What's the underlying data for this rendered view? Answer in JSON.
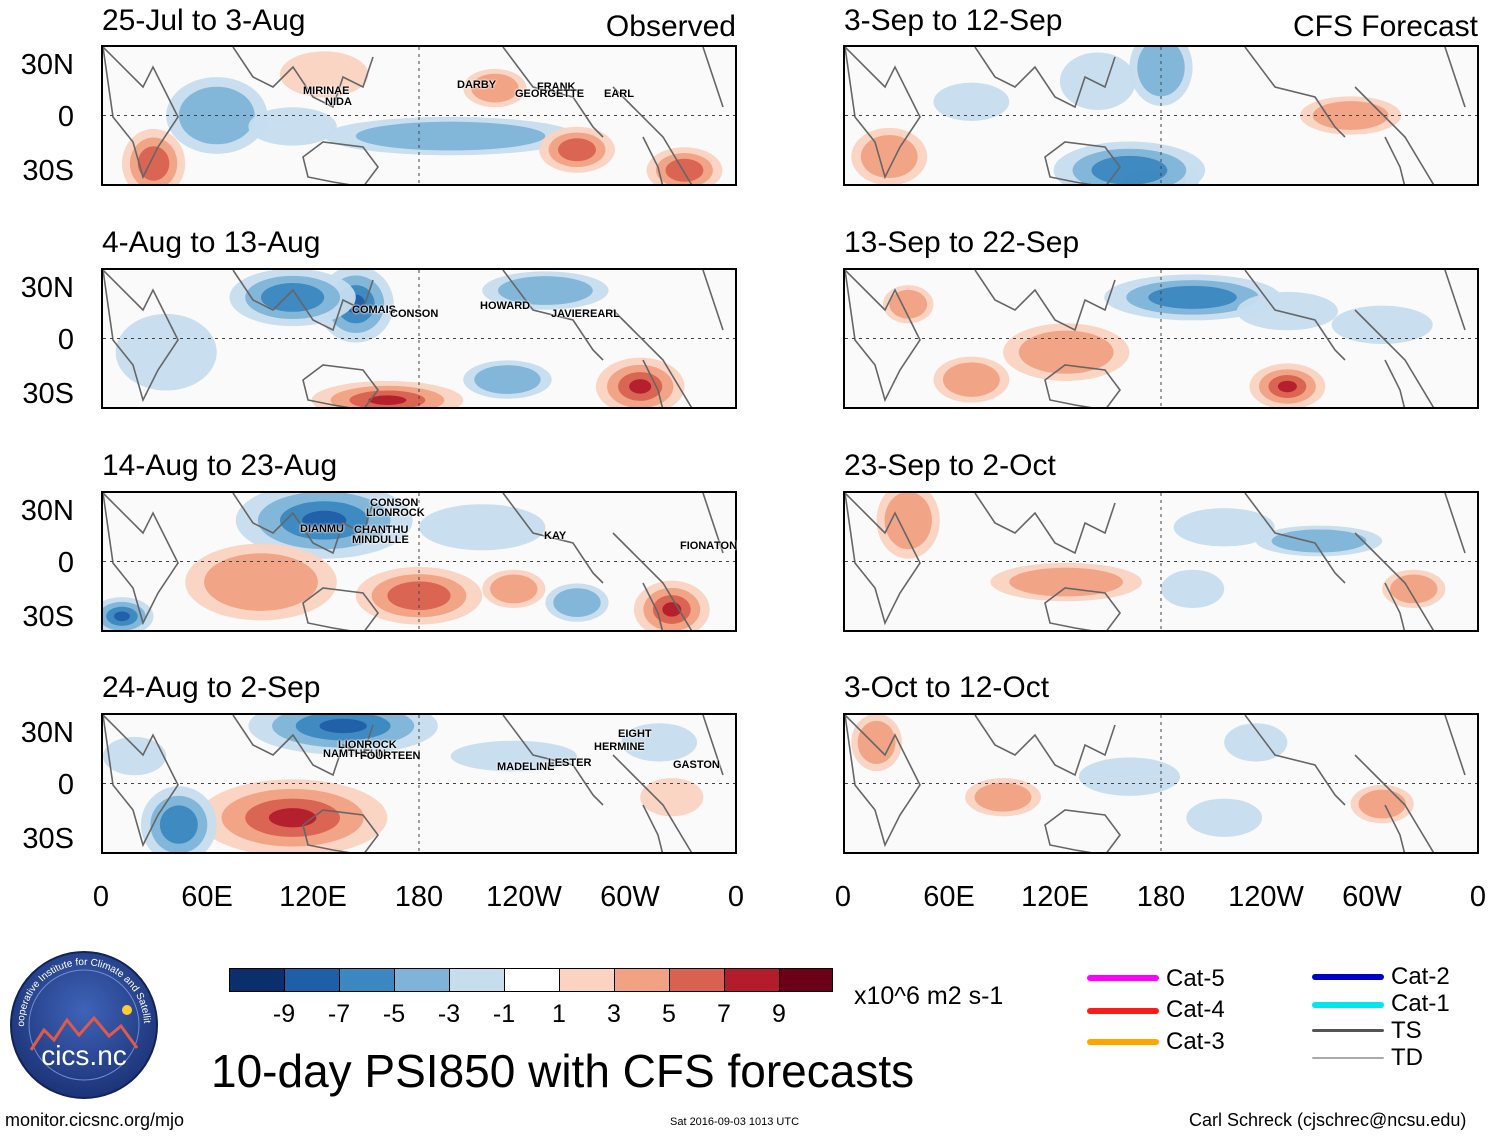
{
  "observed_label": "Observed",
  "forecast_label": "CFS Forecast",
  "lat_labels": [
    "30N",
    "0",
    "30S"
  ],
  "lon_labels": [
    "0",
    "60E",
    "120E",
    "180",
    "120W",
    "60W",
    "0"
  ],
  "observed_panels": [
    {
      "title": "25-Jul to 3-Aug",
      "storms": [
        "MIRINAE",
        "NIDA",
        "DARBY",
        "FRANK",
        "GEORGETTE",
        "EARL"
      ]
    },
    {
      "title": "4-Aug to 13-Aug",
      "storms": [
        "COMAIS",
        "CONSON",
        "HOWARD",
        "JAVIER",
        "EARL"
      ]
    },
    {
      "title": "14-Aug to 23-Aug",
      "storms": [
        "CONSON",
        "LIONROCK",
        "DIANMU",
        "CHANTHU",
        "MINDULLE",
        "KAY",
        "FIONA",
        "TON"
      ]
    },
    {
      "title": "24-Aug to 2-Sep",
      "storms": [
        "LIONROCK",
        "NAMTHEUN",
        "FOURTEEN",
        "MADELINE",
        "LESTER",
        "EIGHT",
        "HERMINE",
        "GASTON"
      ]
    }
  ],
  "forecast_panels": [
    {
      "title": "3-Sep to 12-Sep"
    },
    {
      "title": "13-Sep to 22-Sep"
    },
    {
      "title": "23-Sep to 2-Oct"
    },
    {
      "title": "3-Oct to 12-Oct"
    }
  ],
  "colorbar": {
    "colors": [
      "#0a2f6b",
      "#1f5fa8",
      "#3b87c0",
      "#7eb4d8",
      "#c6ddee",
      "#ffffff",
      "#fbd3c1",
      "#f1a283",
      "#d8614f",
      "#b21c2b",
      "#6c0019"
    ],
    "labels": [
      "-9",
      "-7",
      "-5",
      "-3",
      "-1",
      "1",
      "3",
      "5",
      "7",
      "9"
    ],
    "units": "x10^6 m2 s-1"
  },
  "legend": [
    {
      "label": "Cat-5",
      "color": "#ff00ff"
    },
    {
      "label": "Cat-4",
      "color": "#ff1a1a"
    },
    {
      "label": "Cat-3",
      "color": "#ffa500"
    },
    {
      "label": "Cat-2",
      "color": "#0000cc"
    },
    {
      "label": "Cat-1",
      "color": "#00e5ee"
    },
    {
      "label": "TS",
      "color": "#555555"
    },
    {
      "label": "TD",
      "color": "#aaaaaa"
    }
  ],
  "main_title": "10-day PSI850 with CFS forecasts",
  "logo_text": "cics.nc",
  "logo_ring_text": "Cooperative Institute for Climate and Satellites",
  "footer_left": "monitor.cicsnc.org/mjo",
  "footer_center": "Sat 2016-09-03 1013 UTC",
  "footer_right": "Carl Schreck (cjschrec@ncsu.edu)"
}
